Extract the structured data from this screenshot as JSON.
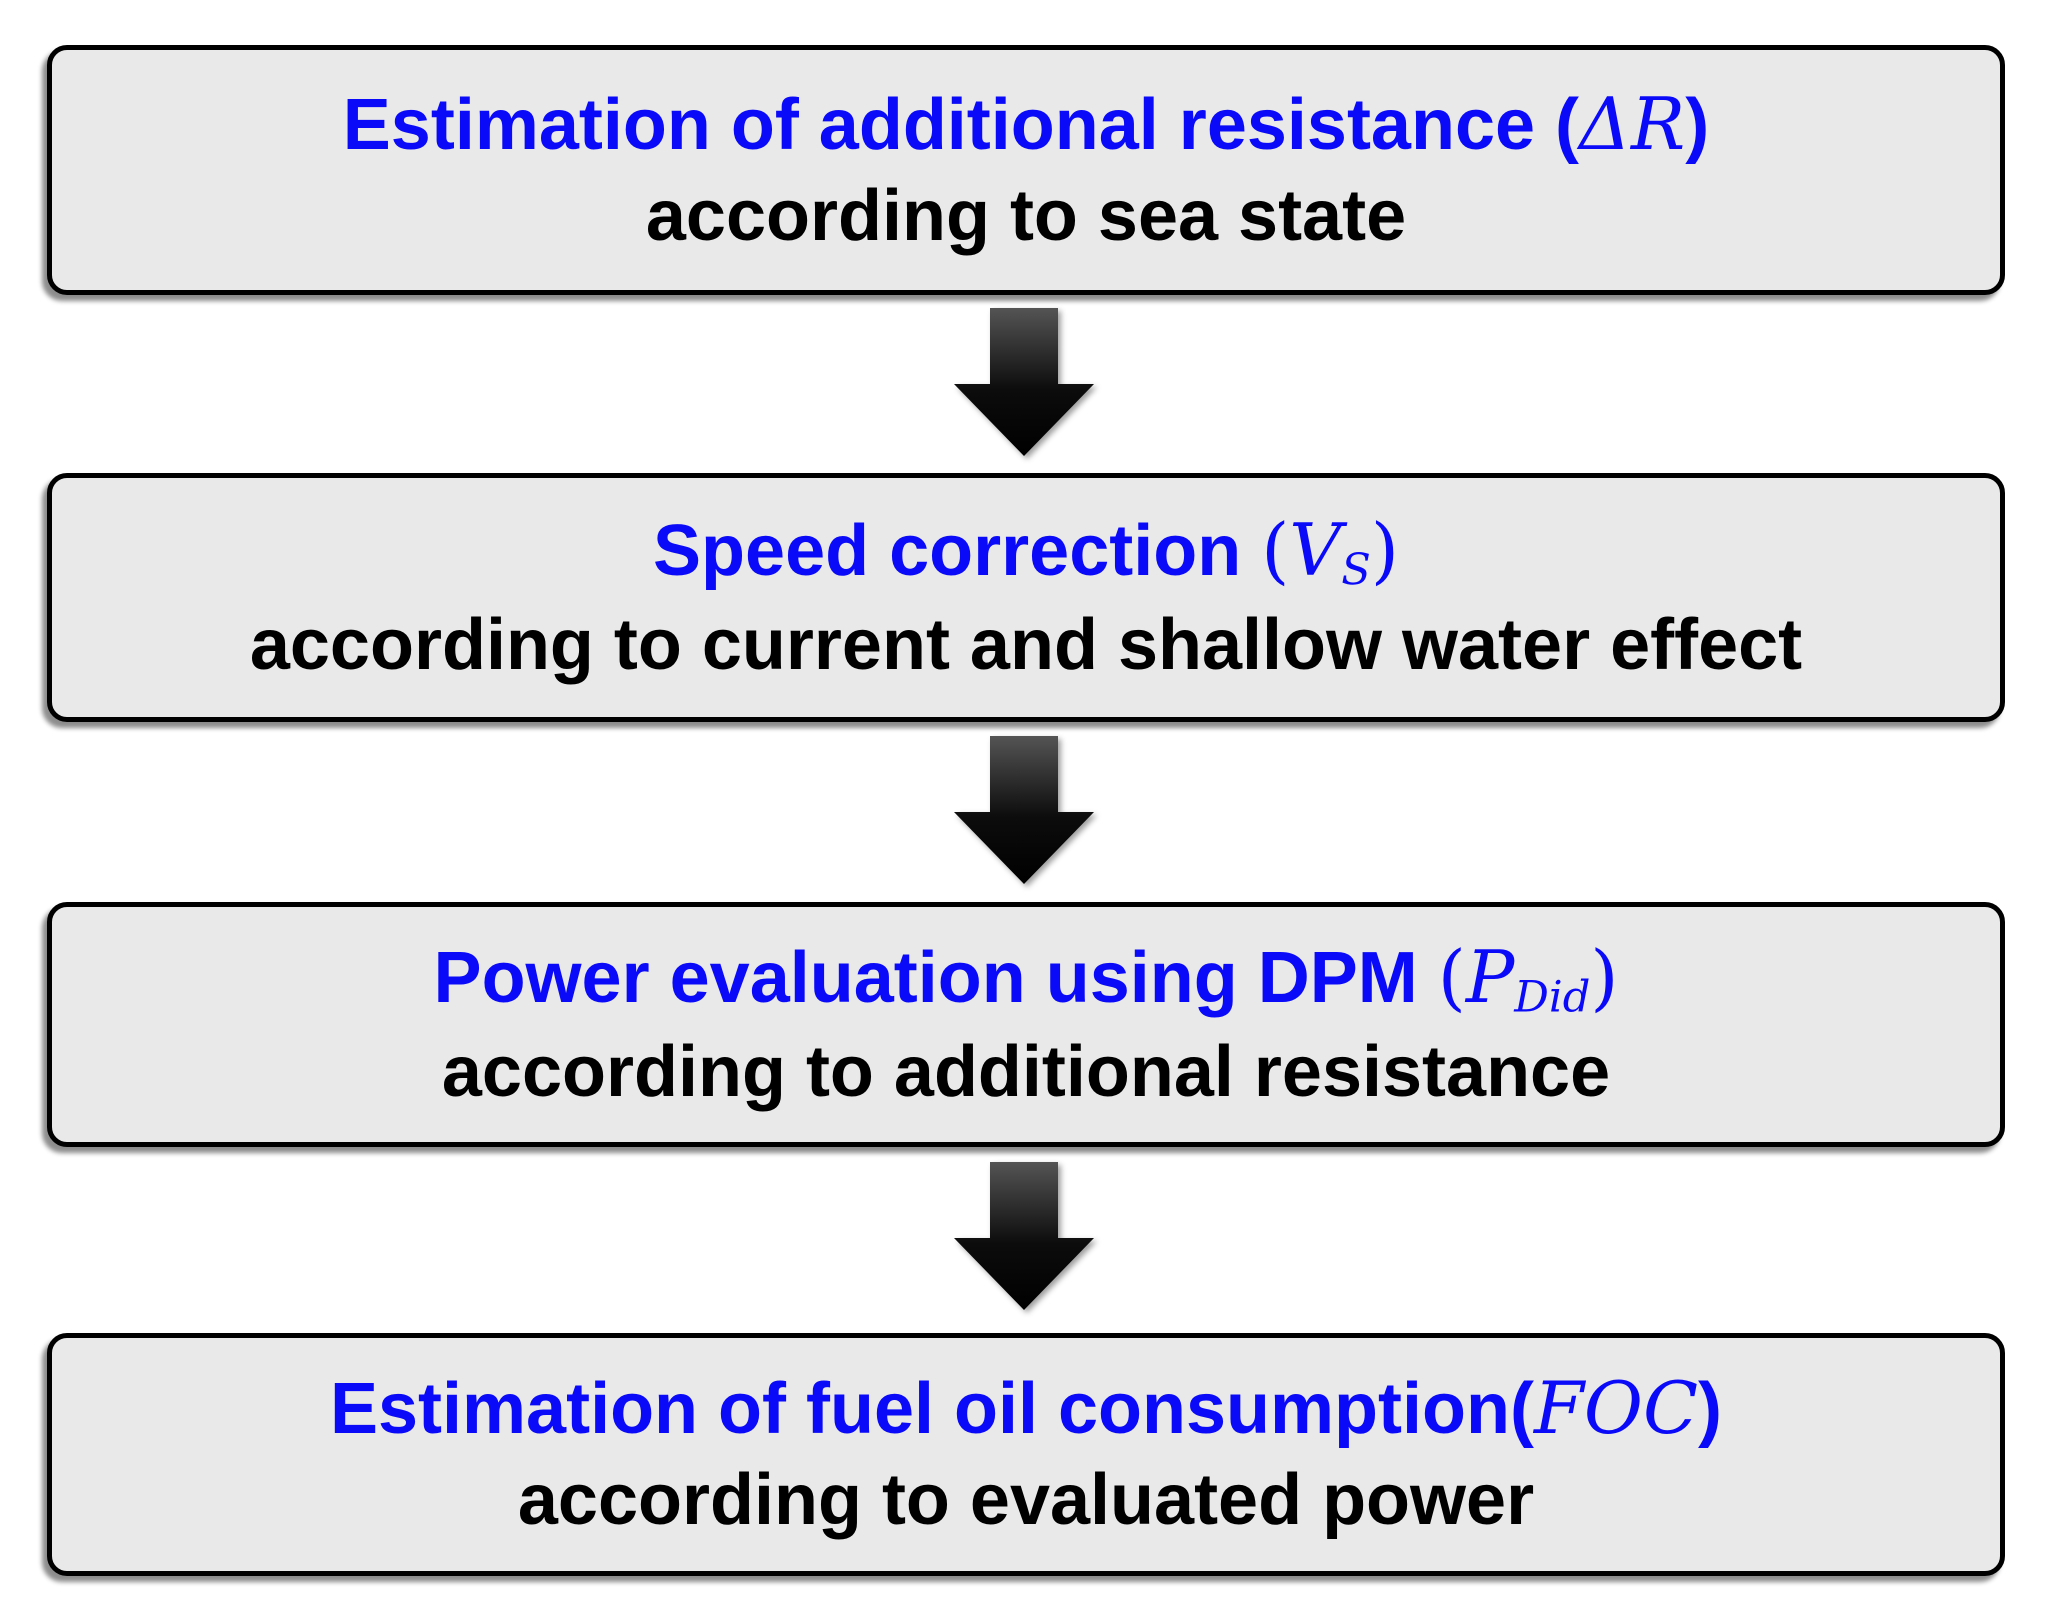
{
  "colors": {
    "blue": "#0a0af8",
    "box_fill": "#e9e9e9",
    "border": "#000000",
    "arrow_light": "#545454",
    "arrow_dark": "#000000"
  },
  "boxes": [
    {
      "name": "additional-resistance",
      "title_segments": [
        {
          "t": "Estimation of additional resistance (",
          "s": "head"
        },
        {
          "t": "ΔR",
          "s": "math"
        },
        {
          "t": ")",
          "s": "head"
        }
      ],
      "subtitle": "according to sea state"
    },
    {
      "name": "speed-correction",
      "title_segments": [
        {
          "t": "Speed correction ",
          "s": "head"
        },
        {
          "t": "(",
          "s": "mparen"
        },
        {
          "t": "V",
          "s": "math"
        },
        {
          "t": "S",
          "s": "msub"
        },
        {
          "t": ")",
          "s": "mparen"
        }
      ],
      "subtitle": "according to current and shallow water effect"
    },
    {
      "name": "power-evaluation",
      "title_segments": [
        {
          "t": "Power evaluation using DPM ",
          "s": "head"
        },
        {
          "t": "(",
          "s": "mparen"
        },
        {
          "t": "P",
          "s": "math"
        },
        {
          "t": "Did",
          "s": "msub"
        },
        {
          "t": ")",
          "s": "mparen"
        }
      ],
      "subtitle": "according to additional resistance"
    },
    {
      "name": "fuel-oil-consumption",
      "title_segments": [
        {
          "t": "Estimation of fuel oil consumption(",
          "s": "head"
        },
        {
          "t": "FOC",
          "s": "math"
        },
        {
          "t": ")",
          "s": "head"
        }
      ],
      "subtitle": "according to evaluated power"
    }
  ]
}
